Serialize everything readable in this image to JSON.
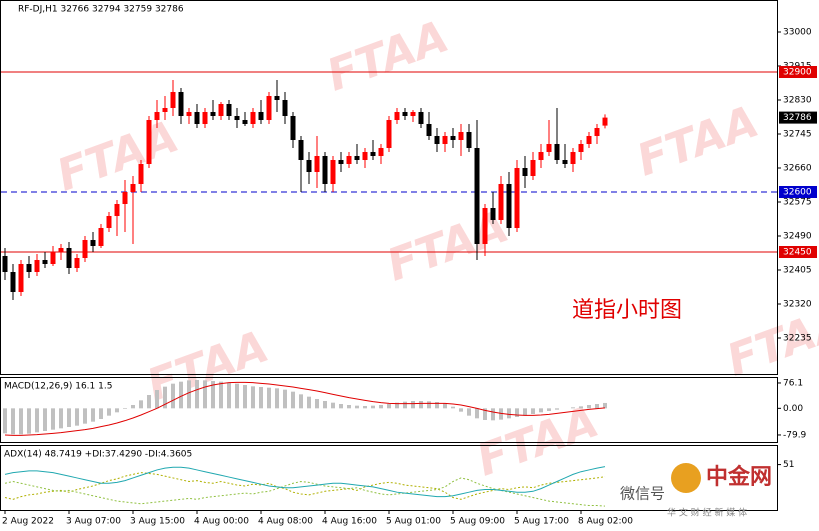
{
  "chart_data": [
    {
      "type": "candlestick",
      "title": "RF-DJ,H1  32766 32794 32759 32786",
      "annotation": "道指小时图",
      "watermark": "FTAA",
      "categories": [
        "2 Aug 2022",
        null,
        null,
        null,
        null,
        null,
        null,
        null,
        "3 Aug 07:00",
        null,
        null,
        null,
        null,
        null,
        null,
        null,
        "3 Aug 15:00",
        null,
        null,
        null,
        null,
        null,
        null,
        null,
        "4 Aug 00:00",
        null,
        null,
        null,
        null,
        null,
        null,
        null,
        "4 Aug 08:00",
        null,
        null,
        null,
        null,
        null,
        null,
        null,
        "4 Aug 16:00",
        null,
        null,
        null,
        null,
        null,
        null,
        null,
        "5 Aug 01:00",
        null,
        null,
        null,
        null,
        null,
        null,
        null,
        "5 Aug 09:00",
        null,
        null,
        null,
        null,
        null,
        null,
        null,
        "5 Aug 17:00",
        null,
        null,
        null,
        null,
        null,
        null,
        null,
        "8 Aug 02:00",
        null,
        null,
        null
      ],
      "open": [
        32440,
        32400,
        32350,
        32420,
        32400,
        32430,
        32420,
        32450,
        32460,
        32410,
        32435,
        32480,
        32465,
        32510,
        32540,
        32570,
        32600,
        32620,
        32670,
        32780,
        32800,
        32810,
        32850,
        32790,
        32800,
        32770,
        32800,
        32790,
        32820,
        32790,
        32780,
        32770,
        32800,
        32780,
        32840,
        32830,
        32790,
        32730,
        32680,
        32650,
        32690,
        32620,
        32680,
        32670,
        32690,
        32680,
        32700,
        32690,
        32710,
        32780,
        32800,
        32790,
        32800,
        32770,
        32740,
        32720,
        32740,
        32730,
        32750,
        32710,
        32470,
        32560,
        32530,
        32620,
        32510,
        32660,
        32640,
        32680,
        32700,
        32720,
        32680,
        32670,
        32700,
        32720,
        32740,
        32766
      ],
      "high": [
        32460,
        32420,
        32430,
        32440,
        32445,
        32450,
        32465,
        32470,
        32475,
        32445,
        32490,
        32500,
        32520,
        32550,
        32580,
        32630,
        32640,
        32680,
        32790,
        32830,
        32840,
        32880,
        32860,
        32810,
        32820,
        32810,
        32830,
        32825,
        32830,
        32810,
        32800,
        32810,
        32830,
        32850,
        32880,
        32850,
        32800,
        32740,
        32700,
        32740,
        32700,
        32690,
        32700,
        32700,
        32720,
        32710,
        32730,
        32720,
        32790,
        32810,
        32810,
        32805,
        32810,
        32800,
        32760,
        32750,
        32760,
        32770,
        32770,
        32780,
        32570,
        32600,
        32640,
        32650,
        32680,
        32690,
        32700,
        32720,
        32780,
        32810,
        32720,
        32710,
        32730,
        32750,
        32770,
        32794
      ],
      "low": [
        32380,
        32330,
        32340,
        32385,
        32390,
        32410,
        32415,
        32430,
        32395,
        32400,
        32425,
        32450,
        32460,
        32500,
        32490,
        32500,
        32470,
        32600,
        32660,
        32760,
        32780,
        32790,
        32770,
        32770,
        32760,
        32760,
        32780,
        32780,
        32780,
        32760,
        32765,
        32760,
        32770,
        32770,
        32800,
        32770,
        32710,
        32600,
        32620,
        32610,
        32600,
        32600,
        32650,
        32660,
        32670,
        32660,
        32680,
        32670,
        32700,
        32770,
        32780,
        32775,
        32760,
        32730,
        32700,
        32700,
        32710,
        32690,
        32700,
        32430,
        32440,
        32520,
        32520,
        32490,
        32500,
        32610,
        32630,
        32660,
        32690,
        32670,
        32660,
        32650,
        32680,
        32710,
        32720,
        32759
      ],
      "close": [
        32400,
        32350,
        32420,
        32400,
        32430,
        32420,
        32450,
        32460,
        32410,
        32435,
        32480,
        32465,
        32510,
        32540,
        32570,
        32600,
        32620,
        32670,
        32780,
        32800,
        32810,
        32850,
        32790,
        32800,
        32770,
        32800,
        32790,
        32820,
        32790,
        32780,
        32770,
        32800,
        32780,
        32840,
        32830,
        32790,
        32730,
        32680,
        32650,
        32690,
        32620,
        32680,
        32670,
        32690,
        32680,
        32700,
        32690,
        32710,
        32780,
        32800,
        32790,
        32800,
        32770,
        32740,
        32720,
        32740,
        32730,
        32750,
        32710,
        32470,
        32560,
        32530,
        32620,
        32510,
        32660,
        32640,
        32680,
        32700,
        32720,
        32680,
        32670,
        32700,
        32720,
        32740,
        32760,
        32786
      ],
      "up_color": "#ff0000",
      "down_color": "#000000",
      "ylim": [
        32145,
        33080
      ],
      "yticks": [
        33000,
        32915,
        32830,
        32745,
        32660,
        32575,
        32490,
        32405,
        32320,
        32235
      ],
      "levels": [
        {
          "value": 32900,
          "color": "#e00000",
          "dashed": false
        },
        {
          "value": 32600,
          "color": "#0000cc",
          "dashed": true
        },
        {
          "value": 32450,
          "color": "#e00000",
          "dashed": false
        }
      ]
    },
    {
      "type": "macd",
      "title": "MACD(12,26,9) 16.1 1.5",
      "histogram": {
        "color": "#c0c0c0",
        "values": [
          -75,
          -78,
          -78,
          -76,
          -72,
          -68,
          -64,
          -60,
          -56,
          -52,
          -46,
          -40,
          -32,
          -22,
          -12,
          -2,
          10,
          24,
          40,
          55,
          65,
          74,
          80,
          84,
          85,
          84,
          82,
          80,
          77,
          74,
          70,
          66,
          64,
          62,
          60,
          56,
          50,
          42,
          35,
          28,
          22,
          17,
          13,
          10,
          8,
          7,
          8,
          10,
          13,
          17,
          20,
          22,
          22,
          21,
          19,
          15,
          5,
          -10,
          -22,
          -30,
          -35,
          -36,
          -34,
          -30,
          -26,
          -22,
          -17,
          -12,
          -8,
          -4,
          0,
          3,
          6,
          10,
          13,
          16.1
        ]
      },
      "signal": {
        "color": "#e00000",
        "values": [
          -80,
          -81,
          -81,
          -80,
          -79,
          -77,
          -75,
          -73,
          -70,
          -67,
          -64,
          -60,
          -55,
          -50,
          -44,
          -37,
          -29,
          -20,
          -10,
          0,
          12,
          24,
          36,
          47,
          56,
          64,
          70,
          74,
          77,
          78,
          78,
          77,
          75,
          73,
          70,
          67,
          64,
          60,
          56,
          52,
          47,
          42,
          37,
          32,
          28,
          24,
          20,
          17,
          15,
          14,
          14,
          14,
          15,
          15,
          15,
          15,
          13,
          10,
          5,
          0,
          -6,
          -11,
          -15,
          -18,
          -20,
          -21,
          -21,
          -20,
          -18,
          -15,
          -12,
          -9,
          -6,
          -3,
          -1,
          1.5
        ]
      },
      "ylim": [
        -101,
        94
      ],
      "yticks": [
        76.1,
        {
          "value": 0,
          "label": "0.00"
        },
        -79.9
      ]
    },
    {
      "type": "adx",
      "title": "ADX(14) 48.7419 +DI:37.4290 -DI:4.3605",
      "adx": {
        "color": "#20a8b0",
        "values": [
          40,
          42,
          43,
          44,
          44,
          43,
          42,
          40,
          38,
          36,
          34,
          32,
          30,
          30,
          31,
          33,
          36,
          39,
          42,
          45,
          47,
          48,
          48,
          47,
          45,
          43,
          41,
          39,
          37,
          35,
          33,
          31,
          29,
          27,
          26,
          25,
          25,
          26,
          27,
          28,
          29,
          30,
          30,
          29,
          28,
          27,
          26,
          24,
          22,
          20,
          19,
          18,
          17,
          16,
          15,
          15,
          16,
          18,
          20,
          22,
          23,
          23,
          22,
          21,
          20,
          20,
          21,
          24,
          28,
          32,
          36,
          40,
          43,
          45,
          47,
          48.7419
        ]
      },
      "plus_di": {
        "color": "#b0b000",
        "values": [
          14,
          12,
          15,
          17,
          18,
          20,
          21,
          22,
          20,
          23,
          25,
          27,
          30,
          33,
          35,
          38,
          40,
          42,
          41,
          40,
          38,
          36,
          34,
          32,
          33,
          31,
          30,
          32,
          30,
          28,
          27,
          29,
          28,
          30,
          26,
          24,
          20,
          18,
          17,
          19,
          21,
          22,
          23,
          24,
          22,
          26,
          28,
          30,
          31,
          30,
          28,
          27,
          26,
          25,
          24,
          20,
          14,
          12,
          15,
          18,
          20,
          22,
          24,
          23,
          25,
          26,
          25,
          28,
          30,
          31,
          32,
          33,
          34,
          35,
          36,
          37.429
        ]
      },
      "minus_di": {
        "color": "#90c040",
        "values": [
          30,
          32,
          30,
          28,
          26,
          24,
          22,
          21,
          22,
          20,
          18,
          16,
          14,
          12,
          10,
          9,
          8,
          7,
          8,
          9,
          10,
          11,
          12,
          13,
          12,
          14,
          15,
          16,
          17,
          18,
          19,
          18,
          20,
          21,
          24,
          27,
          30,
          32,
          31,
          29,
          27,
          26,
          25,
          24,
          25,
          22,
          20,
          18,
          17,
          18,
          19,
          20,
          21,
          22,
          23,
          26,
          32,
          36,
          34,
          30,
          27,
          24,
          22,
          20,
          18,
          16,
          14,
          12,
          10,
          9,
          8,
          7,
          6,
          5,
          5,
          4.3605
        ]
      },
      "ylim": [
        0,
        73
      ],
      "yticks": [
        51
      ]
    }
  ],
  "logo": {
    "name": "中金网",
    "tagline": "华 文 财 经 新 媒 体",
    "wechat": "微信号"
  }
}
